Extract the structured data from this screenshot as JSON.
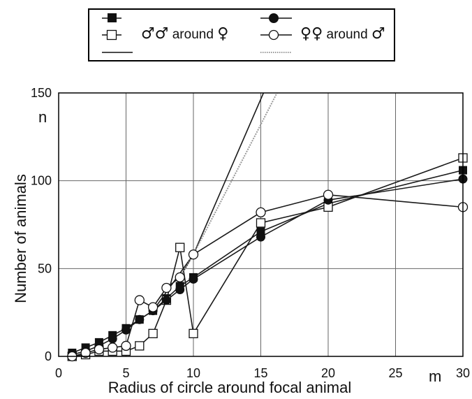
{
  "chart_data": {
    "type": "line",
    "xlabel": "Radius of circle around focal animal",
    "ylabel": "Number of animals",
    "x_unit": "m",
    "y_unit": "n",
    "xlim": [
      0,
      30
    ],
    "ylim": [
      0,
      150
    ],
    "x_ticks": [
      "0",
      "5",
      "10",
      "15",
      "20",
      "25",
      "30"
    ],
    "y_ticks": [
      "0",
      "50",
      "100",
      "150"
    ],
    "grid": true,
    "legend": {
      "position": "top",
      "group_1_label": "around",
      "group_1_sym_a": "♂♂",
      "group_1_sym_b": "♀",
      "group_2_label": "around",
      "group_2_sym_a": "♀♀",
      "group_2_sym_b": "♂"
    },
    "series": [
      {
        "marker": "filled-square",
        "x": [
          1,
          2,
          3,
          4,
          5,
          6,
          7,
          8,
          9,
          10,
          15,
          20,
          30
        ],
        "y": [
          2,
          5,
          8,
          12,
          16,
          21,
          26,
          33,
          40,
          45,
          71,
          87,
          106
        ]
      },
      {
        "marker": "open-square",
        "x": [
          1,
          2,
          3,
          4,
          5,
          6,
          7,
          8,
          9,
          10,
          15,
          20,
          30
        ],
        "y": [
          0,
          1,
          3,
          3,
          3,
          6,
          13,
          32,
          62,
          13,
          76,
          85,
          113
        ]
      },
      {
        "marker": "filled-circle",
        "x": [
          1,
          2,
          3,
          4,
          5,
          6,
          7,
          8,
          9,
          10,
          15,
          20,
          30
        ],
        "y": [
          1,
          3,
          6,
          10,
          15,
          21,
          26,
          32,
          38,
          44,
          68,
          89,
          101
        ]
      },
      {
        "marker": "open-circle",
        "x": [
          1,
          2,
          3,
          4,
          5,
          6,
          7,
          8,
          9,
          10,
          15,
          20,
          30
        ],
        "y": [
          0,
          2,
          4,
          5,
          6,
          32,
          28,
          39,
          45,
          58,
          82,
          92,
          85
        ]
      },
      {
        "marker": "none",
        "style": "solid-dark",
        "x": [
          7,
          10,
          15.2
        ],
        "y": [
          26,
          58,
          150
        ]
      },
      {
        "marker": "none",
        "style": "dotted-grey",
        "x": [
          9,
          10,
          15,
          16.2
        ],
        "y": [
          45,
          58,
          132,
          150
        ]
      }
    ]
  }
}
